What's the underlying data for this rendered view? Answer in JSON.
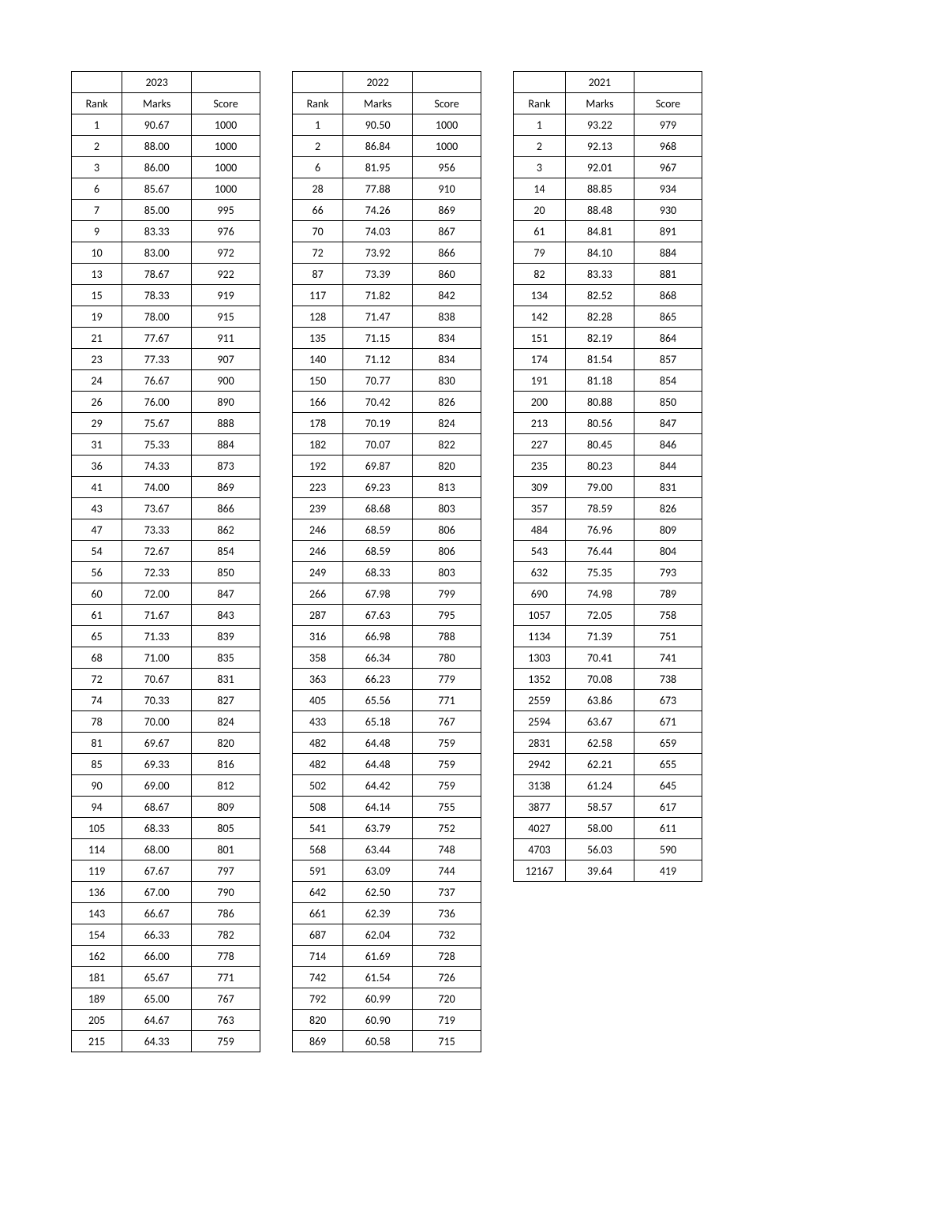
{
  "tables": [
    {
      "year": "2023",
      "columns": [
        "Rank",
        "Marks",
        "Score"
      ],
      "rows": [
        [
          "1",
          "90.67",
          "1000"
        ],
        [
          "2",
          "88.00",
          "1000"
        ],
        [
          "3",
          "86.00",
          "1000"
        ],
        [
          "6",
          "85.67",
          "1000"
        ],
        [
          "7",
          "85.00",
          "995"
        ],
        [
          "9",
          "83.33",
          "976"
        ],
        [
          "10",
          "83.00",
          "972"
        ],
        [
          "13",
          "78.67",
          "922"
        ],
        [
          "15",
          "78.33",
          "919"
        ],
        [
          "19",
          "78.00",
          "915"
        ],
        [
          "21",
          "77.67",
          "911"
        ],
        [
          "23",
          "77.33",
          "907"
        ],
        [
          "24",
          "76.67",
          "900"
        ],
        [
          "26",
          "76.00",
          "890"
        ],
        [
          "29",
          "75.67",
          "888"
        ],
        [
          "31",
          "75.33",
          "884"
        ],
        [
          "36",
          "74.33",
          "873"
        ],
        [
          "41",
          "74.00",
          "869"
        ],
        [
          "43",
          "73.67",
          "866"
        ],
        [
          "47",
          "73.33",
          "862"
        ],
        [
          "54",
          "72.67",
          "854"
        ],
        [
          "56",
          "72.33",
          "850"
        ],
        [
          "60",
          "72.00",
          "847"
        ],
        [
          "61",
          "71.67",
          "843"
        ],
        [
          "65",
          "71.33",
          "839"
        ],
        [
          "68",
          "71.00",
          "835"
        ],
        [
          "72",
          "70.67",
          "831"
        ],
        [
          "74",
          "70.33",
          "827"
        ],
        [
          "78",
          "70.00",
          "824"
        ],
        [
          "81",
          "69.67",
          "820"
        ],
        [
          "85",
          "69.33",
          "816"
        ],
        [
          "90",
          "69.00",
          "812"
        ],
        [
          "94",
          "68.67",
          "809"
        ],
        [
          "105",
          "68.33",
          "805"
        ],
        [
          "114",
          "68.00",
          "801"
        ],
        [
          "119",
          "67.67",
          "797"
        ],
        [
          "136",
          "67.00",
          "790"
        ],
        [
          "143",
          "66.67",
          "786"
        ],
        [
          "154",
          "66.33",
          "782"
        ],
        [
          "162",
          "66.00",
          "778"
        ],
        [
          "181",
          "65.67",
          "771"
        ],
        [
          "189",
          "65.00",
          "767"
        ],
        [
          "205",
          "64.67",
          "763"
        ],
        [
          "215",
          "64.33",
          "759"
        ]
      ]
    },
    {
      "year": "2022",
      "columns": [
        "Rank",
        "Marks",
        "Score"
      ],
      "rows": [
        [
          "1",
          "90.50",
          "1000"
        ],
        [
          "2",
          "86.84",
          "1000"
        ],
        [
          "6",
          "81.95",
          "956"
        ],
        [
          "28",
          "77.88",
          "910"
        ],
        [
          "66",
          "74.26",
          "869"
        ],
        [
          "70",
          "74.03",
          "867"
        ],
        [
          "72",
          "73.92",
          "866"
        ],
        [
          "87",
          "73.39",
          "860"
        ],
        [
          "117",
          "71.82",
          "842"
        ],
        [
          "128",
          "71.47",
          "838"
        ],
        [
          "135",
          "71.15",
          "834"
        ],
        [
          "140",
          "71.12",
          "834"
        ],
        [
          "150",
          "70.77",
          "830"
        ],
        [
          "166",
          "70.42",
          "826"
        ],
        [
          "178",
          "70.19",
          "824"
        ],
        [
          "182",
          "70.07",
          "822"
        ],
        [
          "192",
          "69.87",
          "820"
        ],
        [
          "223",
          "69.23",
          "813"
        ],
        [
          "239",
          "68.68",
          "803"
        ],
        [
          "246",
          "68.59",
          "806"
        ],
        [
          "246",
          "68.59",
          "806"
        ],
        [
          "249",
          "68.33",
          "803"
        ],
        [
          "266",
          "67.98",
          "799"
        ],
        [
          "287",
          "67.63",
          "795"
        ],
        [
          "316",
          "66.98",
          "788"
        ],
        [
          "358",
          "66.34",
          "780"
        ],
        [
          "363",
          "66.23",
          "779"
        ],
        [
          "405",
          "65.56",
          "771"
        ],
        [
          "433",
          "65.18",
          "767"
        ],
        [
          "482",
          "64.48",
          "759"
        ],
        [
          "482",
          "64.48",
          "759"
        ],
        [
          "502",
          "64.42",
          "759"
        ],
        [
          "508",
          "64.14",
          "755"
        ],
        [
          "541",
          "63.79",
          "752"
        ],
        [
          "568",
          "63.44",
          "748"
        ],
        [
          "591",
          "63.09",
          "744"
        ],
        [
          "642",
          "62.50",
          "737"
        ],
        [
          "661",
          "62.39",
          "736"
        ],
        [
          "687",
          "62.04",
          "732"
        ],
        [
          "714",
          "61.69",
          "728"
        ],
        [
          "742",
          "61.54",
          "726"
        ],
        [
          "792",
          "60.99",
          "720"
        ],
        [
          "820",
          "60.90",
          "719"
        ],
        [
          "869",
          "60.58",
          "715"
        ]
      ]
    },
    {
      "year": "2021",
      "columns": [
        "Rank",
        "Marks",
        "Score"
      ],
      "rows": [
        [
          "1",
          "93.22",
          "979"
        ],
        [
          "2",
          "92.13",
          "968"
        ],
        [
          "3",
          "92.01",
          "967"
        ],
        [
          "14",
          "88.85",
          "934"
        ],
        [
          "20",
          "88.48",
          "930"
        ],
        [
          "61",
          "84.81",
          "891"
        ],
        [
          "79",
          "84.10",
          "884"
        ],
        [
          "82",
          "83.33",
          "881"
        ],
        [
          "134",
          "82.52",
          "868"
        ],
        [
          "142",
          "82.28",
          "865"
        ],
        [
          "151",
          "82.19",
          "864"
        ],
        [
          "174",
          "81.54",
          "857"
        ],
        [
          "191",
          "81.18",
          "854"
        ],
        [
          "200",
          "80.88",
          "850"
        ],
        [
          "213",
          "80.56",
          "847"
        ],
        [
          "227",
          "80.45",
          "846"
        ],
        [
          "235",
          "80.23",
          "844"
        ],
        [
          "309",
          "79.00",
          "831"
        ],
        [
          "357",
          "78.59",
          "826"
        ],
        [
          "484",
          "76.96",
          "809"
        ],
        [
          "543",
          "76.44",
          "804"
        ],
        [
          "632",
          "75.35",
          "793"
        ],
        [
          "690",
          "74.98",
          "789"
        ],
        [
          "1057",
          "72.05",
          "758"
        ],
        [
          "1134",
          "71.39",
          "751"
        ],
        [
          "1303",
          "70.41",
          "741"
        ],
        [
          "1352",
          "70.08",
          "738"
        ],
        [
          "2559",
          "63.86",
          "673"
        ],
        [
          "2594",
          "63.67",
          "671"
        ],
        [
          "2831",
          "62.58",
          "659"
        ],
        [
          "2942",
          "62.21",
          "655"
        ],
        [
          "3138",
          "61.24",
          "645"
        ],
        [
          "3877",
          "58.57",
          "617"
        ],
        [
          "4027",
          "58.00",
          "611"
        ],
        [
          "4703",
          "56.03",
          "590"
        ],
        [
          "12167",
          "39.64",
          "419"
        ]
      ]
    }
  ]
}
